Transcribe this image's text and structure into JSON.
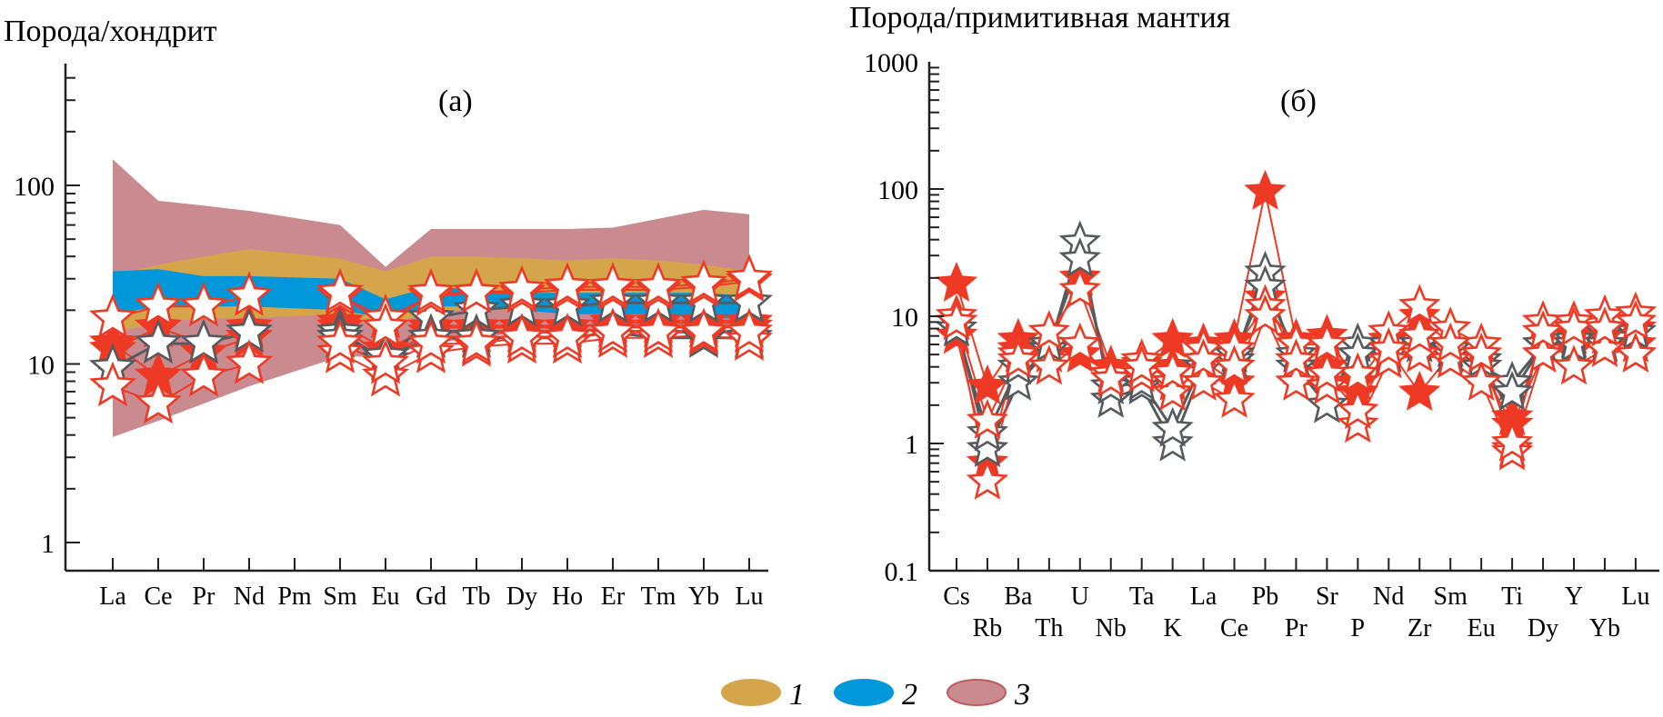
{
  "figure": {
    "legend": [
      {
        "key": "1",
        "color": "#d4a54b"
      },
      {
        "key": "2",
        "color": "#0098da"
      },
      {
        "key": "3",
        "color": "#c98b8f",
        "edge": "#c05a5e"
      }
    ],
    "colors": {
      "filled_star": "#ee3a24",
      "open_star_red": "#ee3a24",
      "open_star_gray": "#555a5f",
      "axis": "#231f20"
    }
  },
  "chart_data": [
    {
      "type": "line",
      "scale": "log",
      "panel": "(a)",
      "ylabel": "Порода/хондрит",
      "xlabel": "",
      "ylim": [
        0.7,
        500
      ],
      "yticks": [
        "1",
        "10",
        "100"
      ],
      "yticks_values": [
        1,
        10,
        100
      ],
      "categories": [
        "La",
        "Ce",
        "Pr",
        "Nd",
        "Pm",
        "Sm",
        "Eu",
        "Gd",
        "Tb",
        "Dy",
        "Ho",
        "Er",
        "Tm",
        "Yb",
        "Lu"
      ],
      "fields": [
        {
          "name": "3",
          "color": "#c98b8f",
          "upper": [
            140,
            82,
            77,
            72,
            null,
            60,
            35,
            57,
            57,
            57,
            57,
            58,
            65,
            73,
            69
          ],
          "lower": [
            3.9,
            4.8,
            6,
            7.5,
            null,
            11,
            11,
            13,
            14,
            15,
            15,
            16,
            16,
            16,
            16
          ]
        },
        {
          "name": "1",
          "color": "#d4a54b",
          "upper": [
            31,
            36,
            40,
            44,
            null,
            39,
            33,
            40,
            40,
            39,
            38,
            39,
            38,
            36,
            33
          ],
          "lower": [
            15,
            17,
            18,
            18,
            null,
            19,
            16,
            20,
            20,
            20,
            21,
            21,
            21,
            21,
            22
          ]
        },
        {
          "name": "2",
          "color": "#0098da",
          "upper": [
            33,
            34,
            31,
            31,
            null,
            30,
            23,
            27,
            26,
            25,
            25,
            25,
            25,
            25,
            24
          ],
          "lower": [
            19,
            21,
            21,
            21,
            null,
            20,
            18,
            21,
            21,
            20,
            19,
            19,
            19,
            18,
            18
          ]
        }
      ],
      "series": [
        {
          "name": "open-red-1",
          "style": "open-red",
          "values": [
            18,
            21,
            21,
            24,
            null,
            24,
            18,
            24,
            25,
            25,
            26,
            26,
            26,
            27,
            29
          ]
        },
        {
          "name": "open-red-2",
          "style": "open-red",
          "values": [
            null,
            null,
            null,
            null,
            null,
            25,
            16,
            25,
            25,
            26,
            27,
            27,
            27,
            28,
            30
          ]
        },
        {
          "name": "filled-1",
          "style": "filled",
          "values": [
            12,
            16,
            13,
            16,
            null,
            17,
            12,
            16,
            16,
            16,
            16,
            17,
            17,
            17,
            17
          ]
        },
        {
          "name": "filled-2",
          "style": "filled",
          "values": [
            13,
            8.5,
            11.5,
            14,
            null,
            16,
            11,
            15,
            15,
            15,
            15,
            16,
            16,
            16,
            16
          ]
        },
        {
          "name": "open-gray-1",
          "style": "open-gray",
          "values": [
            9.5,
            13,
            13,
            15,
            null,
            15,
            10.5,
            18,
            20,
            21,
            21,
            22,
            22,
            22,
            22
          ]
        },
        {
          "name": "open-gray-2",
          "style": "open-gray",
          "values": [
            null,
            null,
            null,
            null,
            null,
            14,
            11,
            14,
            14,
            14,
            14,
            15,
            14,
            14,
            14
          ]
        },
        {
          "name": "open-red-3",
          "style": "open-red",
          "values": [
            7.5,
            6,
            8.5,
            10,
            null,
            11.5,
            8.5,
            11.5,
            12.5,
            13,
            13,
            14,
            14,
            14.5,
            13.5
          ]
        },
        {
          "name": "open-red-4",
          "style": "open-red",
          "values": [
            null,
            null,
            null,
            null,
            null,
            13,
            10,
            13,
            13,
            14,
            14,
            15,
            15,
            15,
            15
          ]
        }
      ]
    },
    {
      "type": "line",
      "scale": "log",
      "panel": "(б)",
      "ylabel": "Порода/примитивная мантия",
      "xlabel": "",
      "ylim": [
        0.1,
        1000
      ],
      "yticks": [
        "0.1",
        "1",
        "10",
        "100",
        "1000"
      ],
      "yticks_values": [
        0.1,
        1,
        10,
        100,
        1000
      ],
      "categories": [
        "Cs",
        "Rb",
        "Ba",
        "Th",
        "U",
        "Nb",
        "Ta",
        "K",
        "La",
        "Ce",
        "Pb",
        "Pr",
        "Sr",
        "P",
        "Nd",
        "Zr",
        "Sm",
        "Eu",
        "Ti",
        "Dy",
        "Y",
        "Yb",
        "Lu"
      ],
      "categories_top_row": [
        "Cs",
        "Ba",
        "U",
        "Ta",
        "La",
        "Pb",
        "Sr",
        "Nd",
        "Sm",
        "Ti",
        "Y",
        "Lu"
      ],
      "categories_bottom_row": [
        "Rb",
        "Th",
        "Nb",
        "K",
        "Ce",
        "Pr",
        "P",
        "Zr",
        "Eu",
        "Dy",
        "Yb"
      ],
      "series": [
        {
          "name": "filled-1",
          "style": "filled",
          "values": [
            18,
            2.8,
            6.5,
            6,
            20,
            4,
            4.2,
            6.5,
            6,
            6.5,
            95,
            6.5,
            7,
            3,
            6.5,
            10,
            6,
            4.5,
            1.6,
            6,
            7,
            7,
            8
          ]
        },
        {
          "name": "filled-2",
          "style": "filled",
          "values": [
            7,
            0.7,
            5.5,
            5,
            5,
            3.5,
            4,
            4,
            4.5,
            3,
            14,
            4.5,
            4,
            2.5,
            5.5,
            2.5,
            5,
            4,
            1.4,
            5,
            5.5,
            6,
            6
          ]
        },
        {
          "name": "open-gray-1",
          "style": "open-gray",
          "values": [
            9,
            0.9,
            3,
            5.5,
            38,
            2.2,
            2.8,
            1.0,
            4,
            4.5,
            22,
            4,
            2,
            6,
            5,
            7,
            5,
            4,
            3,
            6,
            6.5,
            7.5,
            7.5
          ]
        },
        {
          "name": "open-gray-2",
          "style": "open-gray",
          "values": [
            8,
            1.2,
            4,
            6,
            28,
            2.8,
            3,
            1.3,
            4.5,
            5,
            17,
            5,
            2,
            5,
            6,
            6,
            5.5,
            4.5,
            2.5,
            6,
            6,
            6,
            5
          ]
        },
        {
          "name": "open-red-1",
          "style": "open-red",
          "values": [
            10,
            1.5,
            5,
            7.5,
            16,
            3.5,
            4.5,
            3,
            5.5,
            5.5,
            12,
            6,
            6,
            3.5,
            7.5,
            12,
            8,
            6,
            0.9,
            9,
            9,
            10,
            10.5
          ]
        },
        {
          "name": "open-red-2",
          "style": "open-red",
          "values": [
            9,
            0.5,
            4.5,
            4,
            6,
            3.2,
            3.5,
            2.5,
            3,
            2.2,
            10,
            3,
            2.8,
            1.4,
            4.5,
            5,
            4.5,
            3,
            0.85,
            5,
            4,
            5.5,
            5
          ]
        },
        {
          "name": "open-red-3",
          "style": "open-red",
          "values": [
            null,
            null,
            null,
            null,
            null,
            null,
            4,
            3.6,
            4.5,
            4,
            null,
            4.5,
            3.5,
            1.8,
            5.5,
            7,
            6,
            5,
            1.0,
            7.5,
            8,
            8,
            9
          ]
        }
      ]
    }
  ]
}
